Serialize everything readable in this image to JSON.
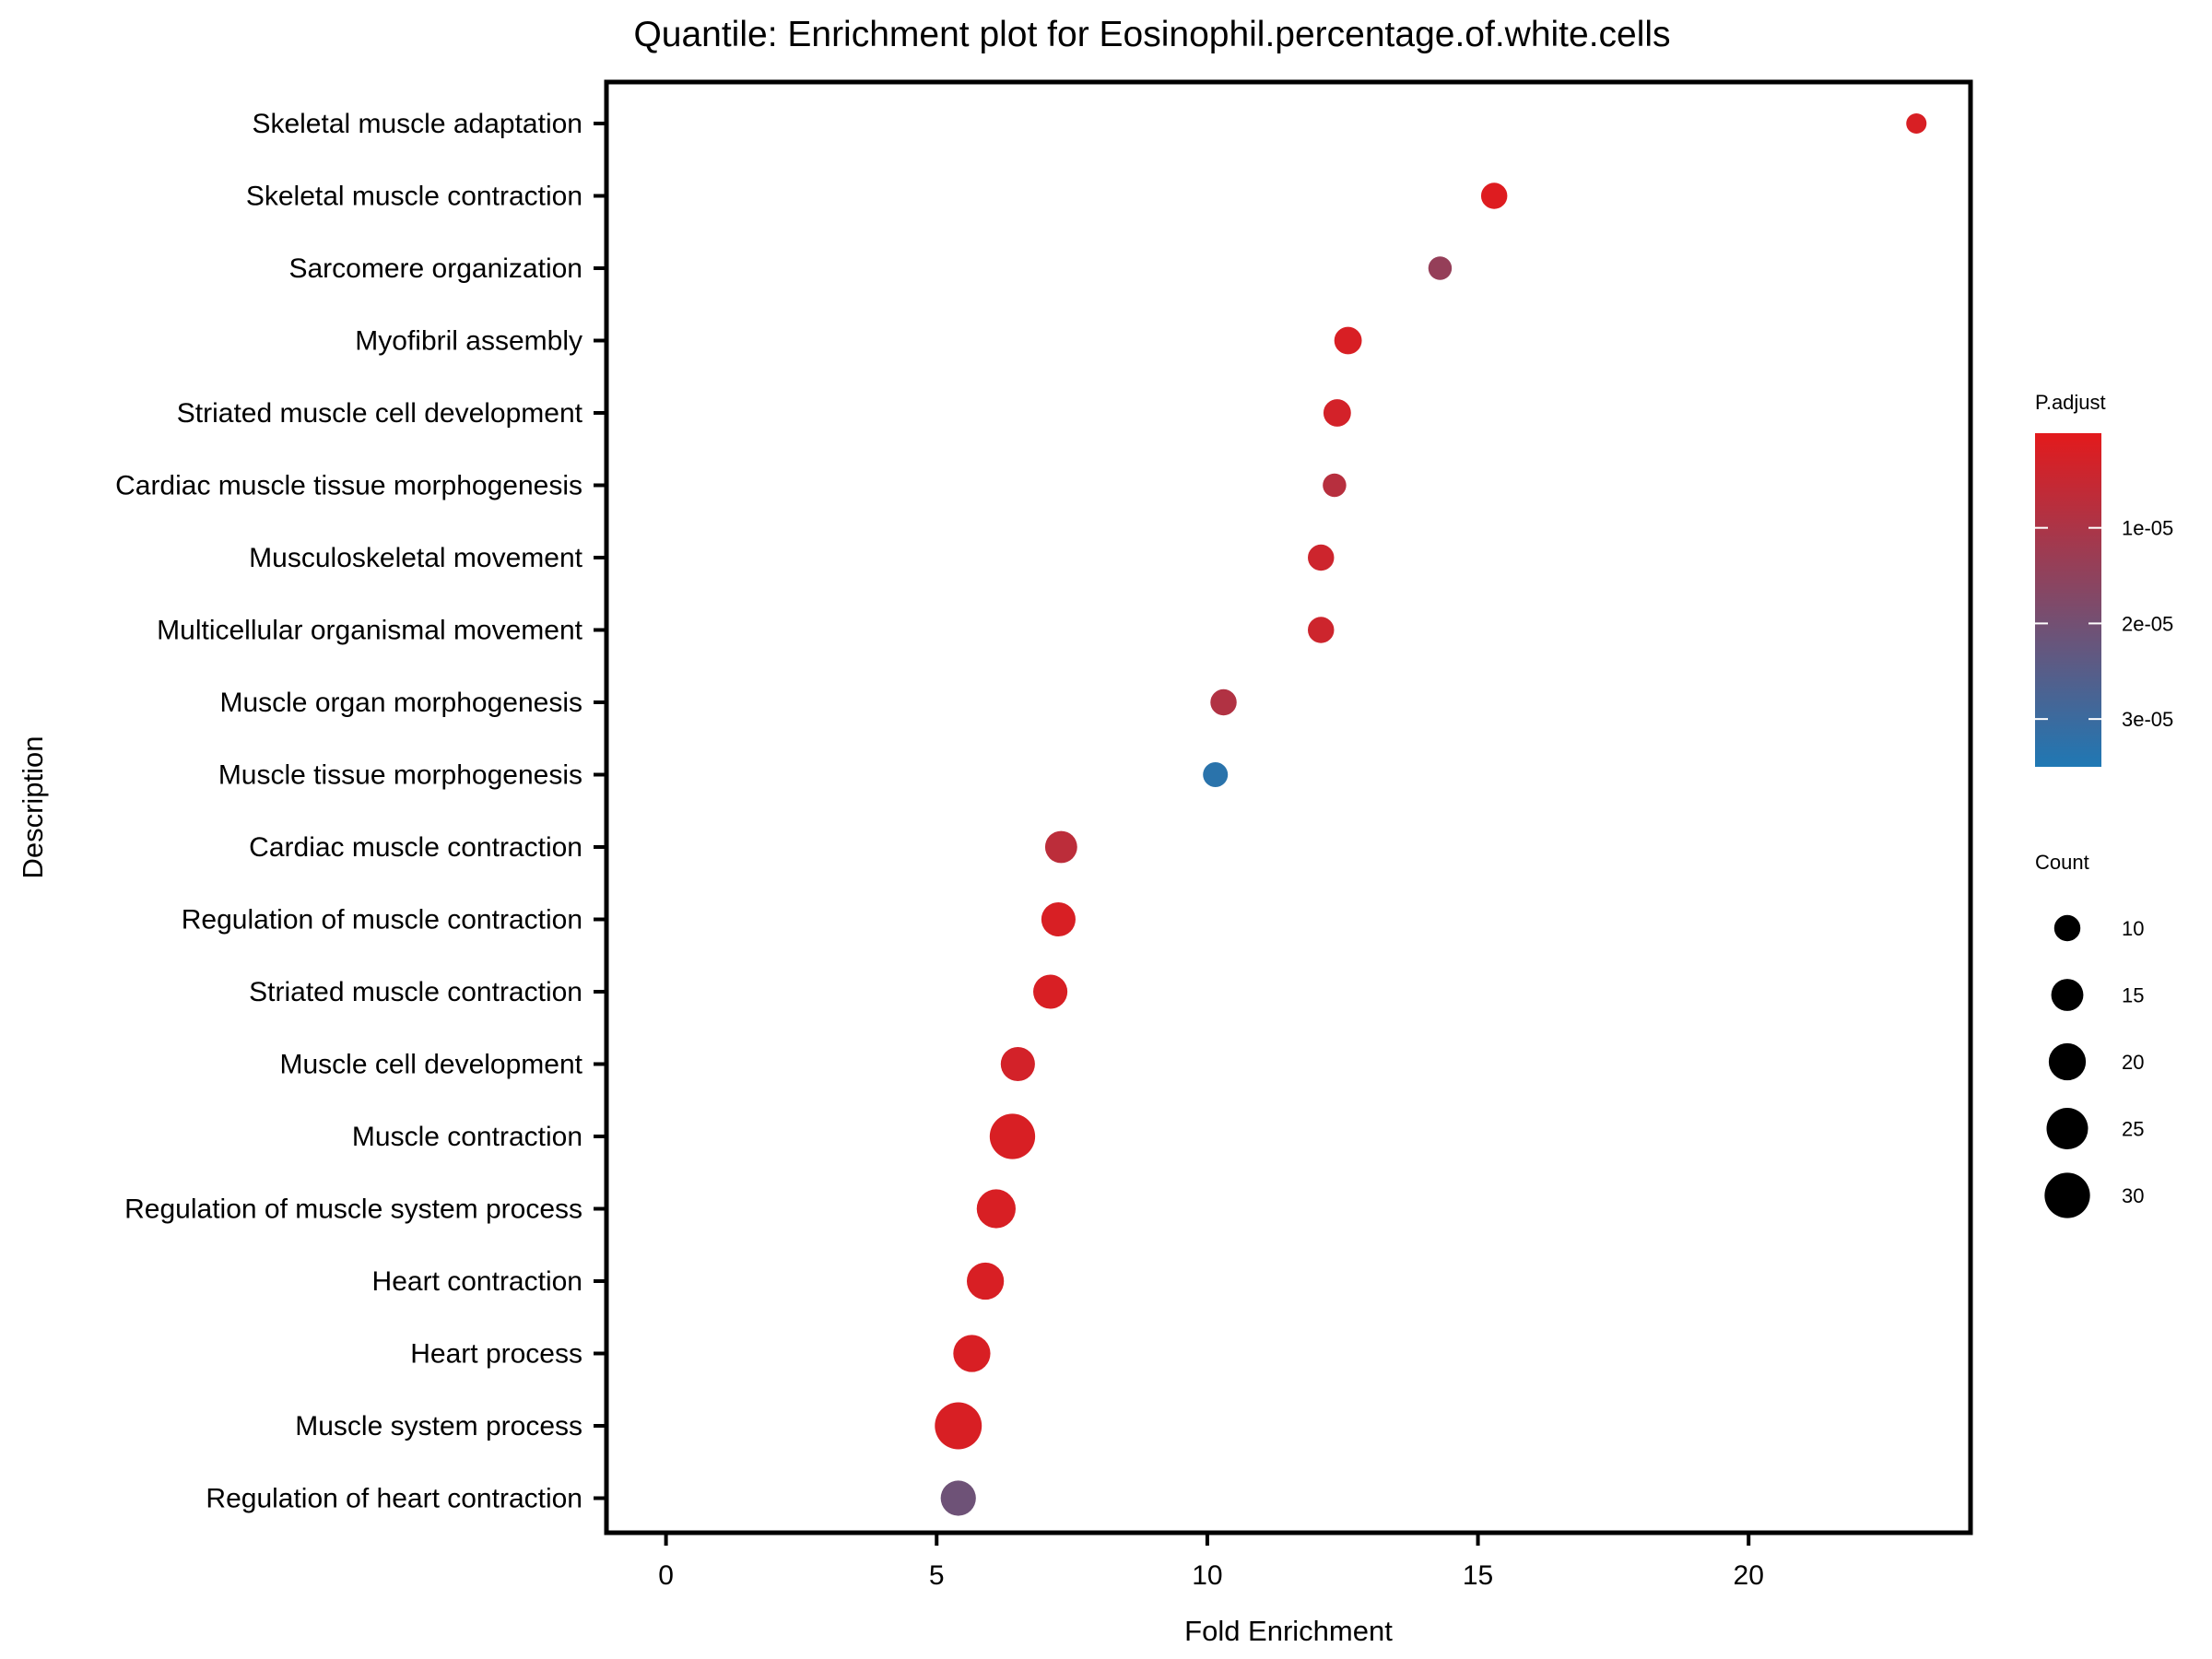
{
  "chart_data": {
    "type": "scatter",
    "title": "Quantile: Enrichment plot for Eosinophil.percentage.of.white.cells",
    "xlabel": "Fold Enrichment",
    "ylabel": "Description",
    "xlim": [
      -1.1,
      24.1
    ],
    "xticks": [
      0,
      5,
      10,
      15,
      20
    ],
    "grid": false,
    "legend_position": "right",
    "color_legend": {
      "title": "P.adjust",
      "low_color": "#E31A1C",
      "high_color": "#1F78B4",
      "range": [
        1e-07,
        3.5e-05
      ],
      "ticks": [
        {
          "value": 1e-05,
          "label": "1e-05"
        },
        {
          "value": 2e-05,
          "label": "2e-05"
        },
        {
          "value": 3e-05,
          "label": "3e-05"
        }
      ]
    },
    "size_legend": {
      "title": "Count",
      "values": [
        10,
        15,
        20,
        25,
        30
      ]
    },
    "points": [
      {
        "description": "Skeletal muscle adaptation",
        "fold_enrichment": 23.1,
        "count": 6,
        "p_adjust": 2e-06
      },
      {
        "description": "Skeletal muscle contraction",
        "fold_enrichment": 15.3,
        "count": 10,
        "p_adjust": 1e-06
      },
      {
        "description": "Sarcomere organization",
        "fold_enrichment": 14.3,
        "count": 8,
        "p_adjust": 1.4e-05
      },
      {
        "description": "Myofibril assembly",
        "fold_enrichment": 12.6,
        "count": 11,
        "p_adjust": 2e-06
      },
      {
        "description": "Striated muscle cell development",
        "fold_enrichment": 12.4,
        "count": 11,
        "p_adjust": 3e-06
      },
      {
        "description": "Cardiac muscle tissue morphogenesis",
        "fold_enrichment": 12.35,
        "count": 8,
        "p_adjust": 8e-06
      },
      {
        "description": "Musculoskeletal movement",
        "fold_enrichment": 12.1,
        "count": 10,
        "p_adjust": 4e-06
      },
      {
        "description": "Multicellular organismal movement",
        "fold_enrichment": 12.1,
        "count": 10,
        "p_adjust": 4e-06
      },
      {
        "description": "Muscle organ morphogenesis",
        "fold_enrichment": 10.3,
        "count": 10,
        "p_adjust": 9e-06
      },
      {
        "description": "Muscle tissue morphogenesis",
        "fold_enrichment": 10.15,
        "count": 9,
        "p_adjust": 3.3e-05
      },
      {
        "description": "Cardiac muscle contraction",
        "fold_enrichment": 7.3,
        "count": 15,
        "p_adjust": 7e-06
      },
      {
        "description": "Regulation of muscle contraction",
        "fold_enrichment": 7.25,
        "count": 17,
        "p_adjust": 2e-06
      },
      {
        "description": "Striated muscle contraction",
        "fold_enrichment": 7.1,
        "count": 17,
        "p_adjust": 2e-06
      },
      {
        "description": "Muscle cell development",
        "fold_enrichment": 6.5,
        "count": 17,
        "p_adjust": 3e-06
      },
      {
        "description": "Muscle contraction",
        "fold_enrichment": 6.4,
        "count": 30,
        "p_adjust": 2e-06
      },
      {
        "description": "Regulation of muscle system process",
        "fold_enrichment": 6.1,
        "count": 22,
        "p_adjust": 2e-06
      },
      {
        "description": "Heart contraction",
        "fold_enrichment": 5.9,
        "count": 20,
        "p_adjust": 2e-06
      },
      {
        "description": "Heart process",
        "fold_enrichment": 5.65,
        "count": 20,
        "p_adjust": 2e-06
      },
      {
        "description": "Muscle system process",
        "fold_enrichment": 5.4,
        "count": 32,
        "p_adjust": 2e-06
      },
      {
        "description": "Regulation of heart contraction",
        "fold_enrichment": 5.4,
        "count": 18,
        "p_adjust": 2.1e-05
      }
    ]
  }
}
